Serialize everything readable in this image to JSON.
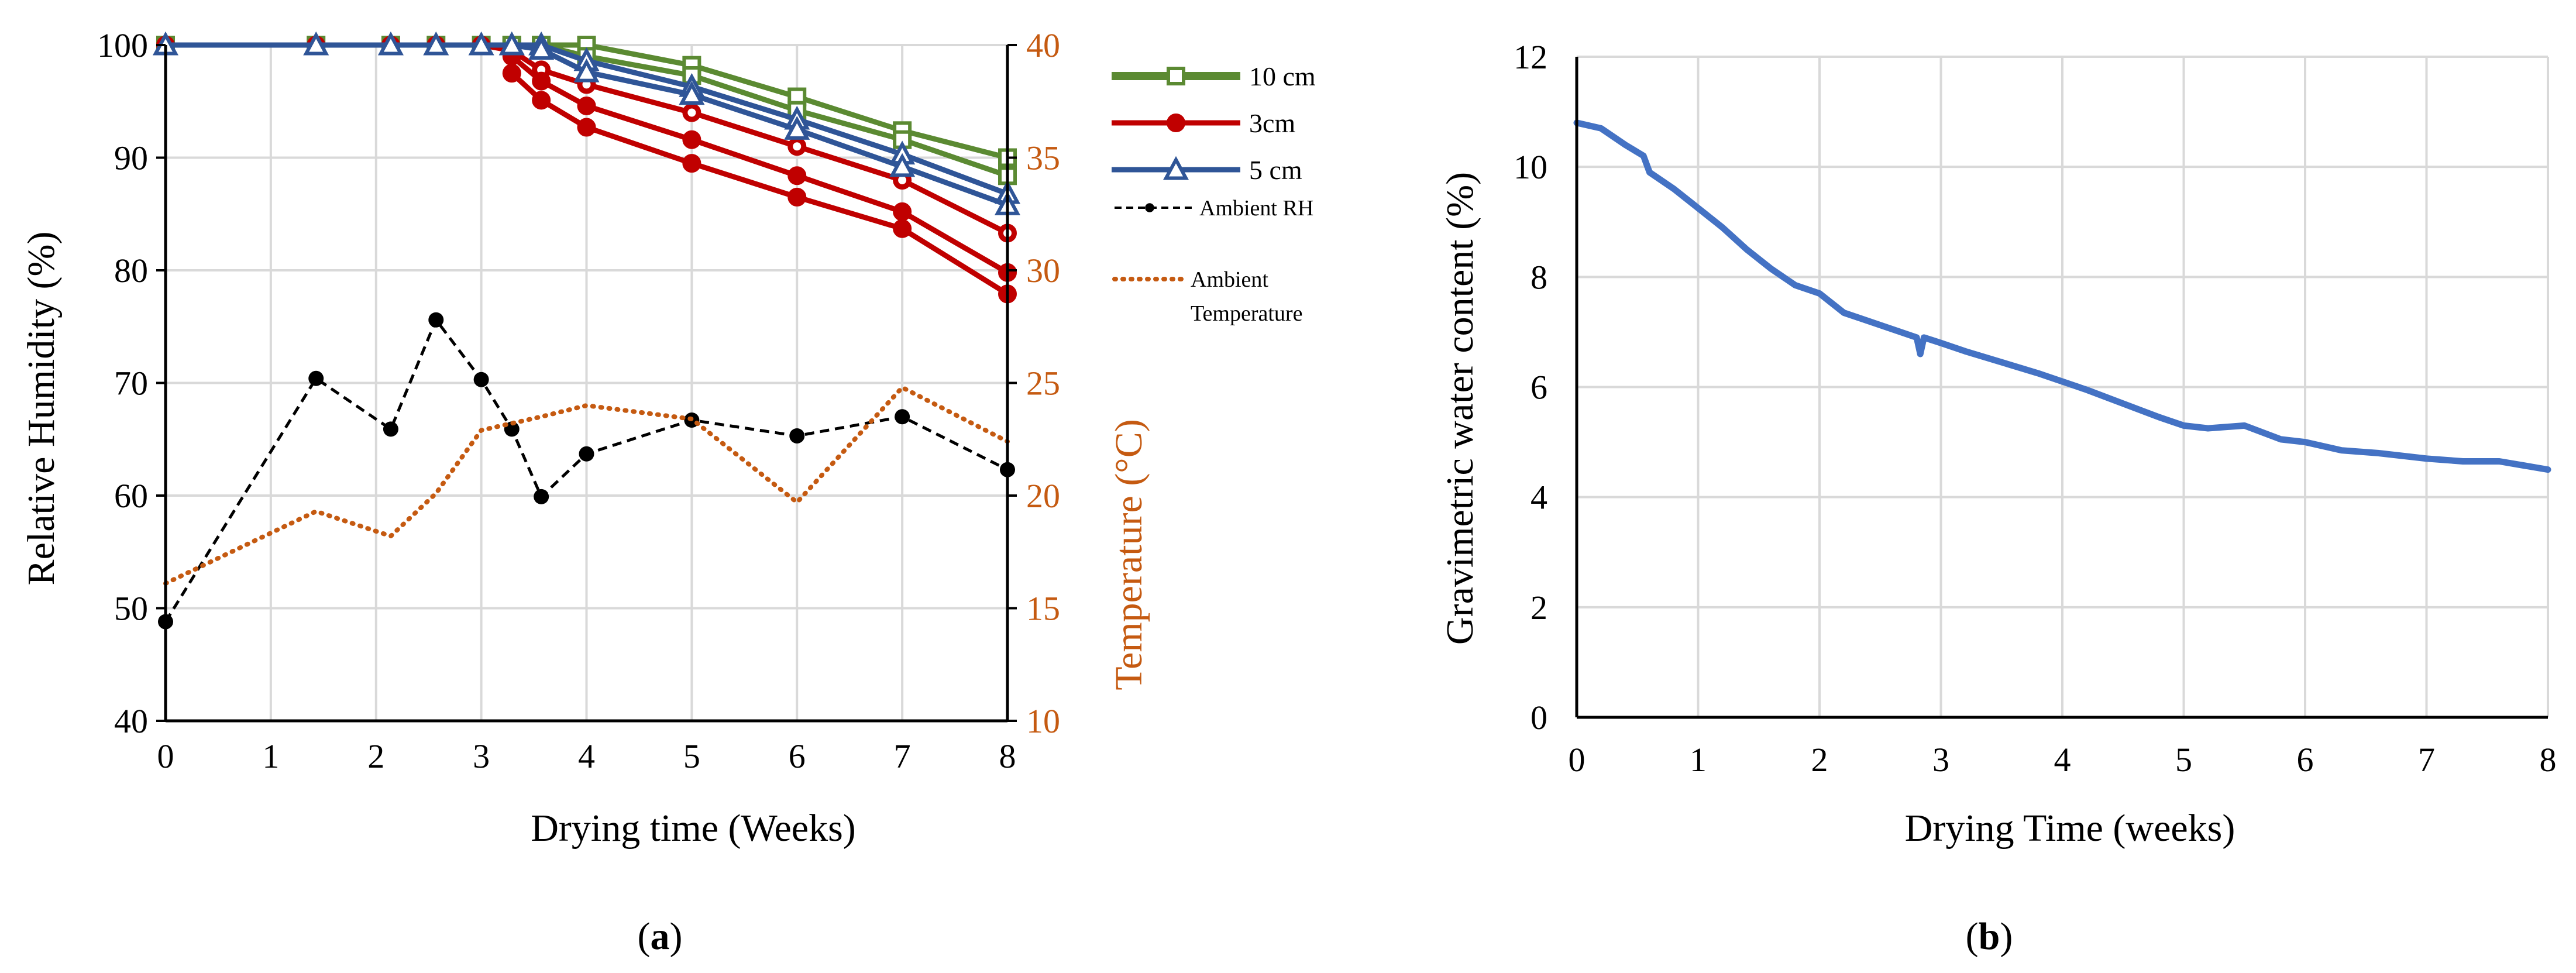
{
  "chart_data": [
    {
      "id": "a",
      "type": "line",
      "caption_open": "(",
      "caption_letter": "a",
      "caption_close": ")",
      "xlabel": "Drying time (Weeks)",
      "ylabel": "Relative Humidity (%)",
      "y2label": "Temperature (°C)",
      "xlim": [
        0,
        8
      ],
      "ylim": [
        40,
        100
      ],
      "y2lim": [
        10,
        40
      ],
      "xticks": [
        0,
        1,
        2,
        3,
        4,
        5,
        6,
        7,
        8
      ],
      "yticks": [
        40,
        50,
        60,
        70,
        80,
        90,
        100
      ],
      "y2ticks": [
        10,
        15,
        20,
        25,
        30,
        35,
        40
      ],
      "colors": {
        "green": "#5b8a32",
        "red": "#c00000",
        "blue": "#2f5597",
        "ambient_rh": "#000000",
        "ambient_temp": "#c55a11",
        "grid": "#d9d9d9"
      },
      "legend": {
        "ten_cm": "10 cm",
        "three_cm": "3cm",
        "five_cm": "5 cm",
        "ambient_rh": "Ambient RH",
        "ambient_temp_line1": "Ambient",
        "ambient_temp_line2": "Temperature"
      },
      "series": [
        {
          "name": "10 cm (a)",
          "color": "green",
          "marker": "square",
          "x": [
            0,
            1.43,
            2.14,
            2.57,
            3,
            3.29,
            3.57,
            4,
            5,
            6,
            7,
            8
          ],
          "y": [
            100,
            100,
            100,
            100,
            100,
            100,
            100,
            100,
            98.2,
            95.4,
            92.4,
            90
          ]
        },
        {
          "name": "10 cm (b)",
          "color": "green",
          "marker": "square",
          "x": [
            3.29,
            3.57,
            4,
            5,
            6,
            7,
            8
          ],
          "y": [
            100,
            100,
            99,
            97.3,
            94.2,
            91.6,
            88.4
          ]
        },
        {
          "name": "3cm (a)",
          "color": "red",
          "marker": "circle",
          "x": [
            0,
            1.43,
            2.14,
            2.57,
            3,
            3.29,
            3.57,
            4,
            5,
            6,
            7,
            8
          ],
          "y": [
            100,
            100,
            100,
            100,
            100,
            99.5,
            97.8,
            96.5,
            94,
            91,
            88,
            83.3
          ]
        },
        {
          "name": "3cm (b)",
          "color": "red",
          "marker": "circle",
          "x": [
            3.29,
            3.57,
            4,
            5,
            6,
            7,
            8
          ],
          "y": [
            99,
            96.8,
            94.6,
            91.6,
            88.4,
            85.2,
            79.8
          ]
        },
        {
          "name": "3cm (c)",
          "color": "red",
          "marker": "circle",
          "x": [
            3.29,
            3.57,
            4,
            5,
            6,
            7,
            8
          ],
          "y": [
            97.5,
            95.1,
            92.7,
            89.5,
            86.5,
            83.7,
            77.9
          ]
        },
        {
          "name": "5 cm (a)",
          "color": "blue",
          "marker": "triangle",
          "x": [
            0,
            1.43,
            2.14,
            2.57,
            3,
            3.29,
            3.57,
            4,
            5,
            6,
            7,
            8
          ],
          "y": [
            100,
            100,
            100,
            100,
            100,
            100,
            100,
            98.6,
            96.3,
            93.4,
            90.3,
            86.8
          ]
        },
        {
          "name": "5 cm (b)",
          "color": "blue",
          "marker": "triangle",
          "x": [
            3.29,
            3.57,
            4,
            5,
            6,
            7,
            8
          ],
          "y": [
            100,
            99.6,
            97.6,
            95.6,
            92.5,
            89.2,
            85.8
          ]
        },
        {
          "name": "Ambient RH",
          "color": "ambient_rh",
          "marker": "dot",
          "dash": true,
          "x": [
            0,
            1.43,
            2.14,
            2.57,
            3,
            3.29,
            3.57,
            4,
            5,
            6,
            7,
            8
          ],
          "y": [
            48.8,
            70.4,
            65.9,
            75.6,
            70.3,
            65.9,
            59.9,
            63.7,
            66.7,
            65.3,
            67,
            62.3
          ]
        },
        {
          "name": "Ambient Temperature",
          "color": "ambient_temp",
          "marker": "none",
          "dotted": true,
          "axis": "right",
          "x": [
            0,
            1.43,
            2.14,
            2.57,
            3,
            3.57,
            4,
            5,
            6,
            7,
            8
          ],
          "y": [
            16.1,
            19.3,
            18.2,
            20.1,
            22.9,
            23.5,
            24,
            23.4,
            19.7,
            24.8,
            22.4
          ]
        }
      ]
    },
    {
      "id": "b",
      "type": "line",
      "caption_open": "(",
      "caption_letter": "b",
      "caption_close": ")",
      "xlabel": "Drying Time (weeks)",
      "ylabel": "Gravimetric water content (%)",
      "xlim": [
        0,
        8
      ],
      "ylim": [
        0,
        12
      ],
      "xticks": [
        0,
        1,
        2,
        3,
        4,
        5,
        6,
        7,
        8
      ],
      "yticks": [
        0,
        2,
        4,
        6,
        8,
        10,
        12
      ],
      "colors": {
        "line": "#4472c4",
        "grid": "#d9d9d9"
      },
      "series": [
        {
          "name": "Gravimetric water content",
          "x": [
            0,
            0.2,
            0.4,
            0.55,
            0.6,
            0.8,
            1,
            1.2,
            1.4,
            1.6,
            1.8,
            2,
            2.2,
            2.4,
            2.6,
            2.8,
            2.83,
            2.86,
            3,
            3.2,
            3.5,
            3.8,
            4,
            4.2,
            4.5,
            4.8,
            5,
            5.2,
            5.5,
            5.8,
            6,
            6.3,
            6.6,
            7,
            7.3,
            7.6,
            8
          ],
          "y": [
            10.8,
            10.7,
            10.4,
            10.2,
            9.9,
            9.6,
            9.25,
            8.9,
            8.5,
            8.15,
            7.85,
            7.7,
            7.35,
            7.2,
            7.05,
            6.9,
            6.6,
            6.9,
            6.8,
            6.65,
            6.45,
            6.25,
            6.1,
            5.95,
            5.7,
            5.45,
            5.3,
            5.25,
            5.3,
            5.05,
            5.0,
            4.85,
            4.8,
            4.7,
            4.65,
            4.65,
            4.5
          ]
        }
      ]
    }
  ]
}
